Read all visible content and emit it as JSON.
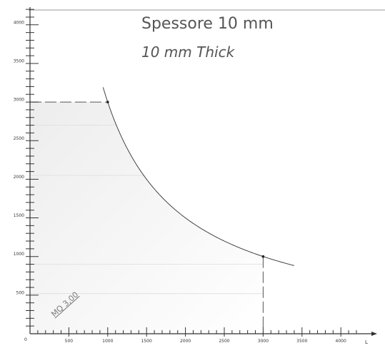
{
  "chart_data": {
    "type": "line",
    "title": "Spessore 10 mm",
    "subtitle": "10 mm Thick",
    "xlabel": "L",
    "ylabel": "",
    "xlim": [
      0,
      4500
    ],
    "ylim": [
      0,
      4200
    ],
    "x_ticks": [
      0,
      500,
      1000,
      1500,
      2000,
      2500,
      3000,
      3500,
      4000
    ],
    "y_ticks": [
      500,
      1000,
      1500,
      2000,
      2500,
      3000,
      3500,
      4000
    ],
    "origin_label": "0",
    "area_label": "MQ 3,00",
    "area_value": 3.0,
    "curve": {
      "formula": "y = 3000000 / x",
      "x_start": 940,
      "x_end": 3400
    },
    "marked_points": [
      {
        "x": 1000,
        "y": 3000
      },
      {
        "x": 3000,
        "y": 1000
      }
    ],
    "grid": false,
    "colors": {
      "axis": "#333333",
      "curve": "#444444",
      "guide": "#555555",
      "shade_start": "#eeeeee",
      "shade_end": "#ffffff"
    }
  }
}
